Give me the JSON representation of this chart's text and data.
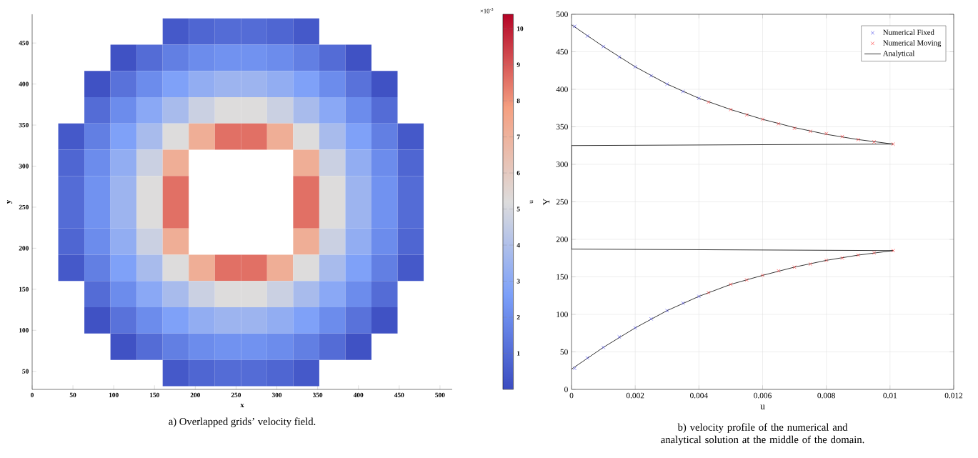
{
  "chart_data": [
    {
      "type": "heatmap",
      "title": "a) Overlapped grids’ velocity field.",
      "xlabel": "x",
      "ylabel": "y",
      "clabel": "u",
      "annotations": [
        "×10$^{-3}$"
      ],
      "x": [
        16,
        48,
        80,
        112,
        144,
        176,
        208,
        240,
        272,
        304,
        336,
        368,
        400,
        432,
        464,
        496
      ],
      "y": [
        464,
        432,
        400,
        368,
        336,
        304,
        272,
        240,
        208,
        176,
        144,
        112,
        80,
        48
      ],
      "cells": [
        [
          null,
          null,
          null,
          null,
          null,
          0.4,
          0.8,
          1.0,
          1.0,
          0.8,
          0.4,
          null,
          null,
          null,
          null,
          null
        ],
        [
          null,
          null,
          null,
          0.2,
          1.0,
          1.6,
          2.0,
          2.2,
          2.2,
          2.0,
          1.6,
          1.0,
          0.2,
          null,
          null,
          null
        ],
        [
          null,
          null,
          0.2,
          1.2,
          2.0,
          2.7,
          3.2,
          3.5,
          3.5,
          3.2,
          2.7,
          2.0,
          1.2,
          0.2,
          null,
          null
        ],
        [
          null,
          null,
          1.0,
          2.0,
          3.0,
          3.8,
          4.7,
          5.2,
          5.2,
          4.7,
          3.8,
          3.0,
          2.0,
          1.0,
          null,
          null
        ],
        [
          null,
          0.4,
          1.6,
          2.7,
          3.8,
          5.2,
          7.2,
          8.6,
          8.6,
          7.2,
          5.2,
          3.8,
          2.7,
          1.6,
          0.4,
          null
        ],
        [
          null,
          0.8,
          2.0,
          3.2,
          4.7,
          7.2,
          null,
          null,
          null,
          null,
          7.2,
          4.7,
          3.2,
          2.0,
          0.8,
          null
        ],
        [
          null,
          1.0,
          2.2,
          3.5,
          5.2,
          8.6,
          null,
          null,
          null,
          null,
          8.6,
          5.2,
          3.5,
          2.2,
          1.0,
          null
        ],
        [
          null,
          1.0,
          2.2,
          3.5,
          5.2,
          8.6,
          null,
          null,
          null,
          null,
          8.6,
          5.2,
          3.5,
          2.2,
          1.0,
          null
        ],
        [
          null,
          0.8,
          2.0,
          3.2,
          4.7,
          7.2,
          null,
          null,
          null,
          null,
          7.2,
          4.7,
          3.2,
          2.0,
          0.8,
          null
        ],
        [
          null,
          0.4,
          1.6,
          2.7,
          3.8,
          5.2,
          7.2,
          8.6,
          8.6,
          7.2,
          5.2,
          3.8,
          2.7,
          1.6,
          0.4,
          null
        ],
        [
          null,
          null,
          1.0,
          2.0,
          3.0,
          3.8,
          4.7,
          5.2,
          5.2,
          4.7,
          3.8,
          3.0,
          2.0,
          1.0,
          null,
          null
        ],
        [
          null,
          null,
          0.2,
          1.2,
          2.0,
          2.7,
          3.2,
          3.5,
          3.5,
          3.2,
          2.7,
          2.0,
          1.2,
          0.2,
          null,
          null
        ],
        [
          null,
          null,
          null,
          0.2,
          1.0,
          1.6,
          2.0,
          2.2,
          2.2,
          2.0,
          1.6,
          1.0,
          0.2,
          null,
          null,
          null
        ],
        [
          null,
          null,
          null,
          null,
          null,
          0.4,
          0.8,
          1.0,
          1.0,
          0.8,
          0.4,
          null,
          null,
          null,
          null,
          null
        ]
      ],
      "clim": [
        0,
        10.4
      ],
      "cticks": [
        1,
        2,
        3,
        4,
        5,
        6,
        7,
        8,
        9,
        10
      ],
      "xlim": [
        0,
        515
      ],
      "ylim": [
        28,
        485
      ],
      "xticks": [
        0,
        50,
        100,
        150,
        200,
        250,
        300,
        350,
        400,
        450,
        500
      ],
      "yticks": [
        50,
        100,
        150,
        200,
        250,
        300,
        350,
        400,
        450
      ]
    },
    {
      "type": "scatter",
      "title": "b) velocity profile of the numerical and analytical solution at the middle of the domain.",
      "xlabel": "u",
      "ylabel": "Y",
      "xlim": [
        0,
        0.012
      ],
      "ylim": [
        0,
        500
      ],
      "xticks": [
        0,
        0.002,
        0.004,
        0.006,
        0.008,
        0.01,
        0.012
      ],
      "yticks": [
        0,
        50,
        100,
        150,
        200,
        250,
        300,
        350,
        400,
        450,
        500
      ],
      "grid": true,
      "legend": "top right",
      "series": [
        {
          "name": "Numerical Fixed",
          "type": "scatter",
          "marker": "cross",
          "color": "#5050e8",
          "x": [
            0.0001,
            0.0005,
            0.001,
            0.0015,
            0.002,
            0.0025,
            0.003,
            0.0035,
            0.004,
            0.0001,
            0.0005,
            0.001,
            0.0015,
            0.002,
            0.0025,
            0.003,
            0.0035,
            0.004
          ],
          "values": [
            484,
            471,
            457,
            443,
            430,
            418,
            407,
            397,
            388,
            28,
            42,
            56,
            70,
            82,
            94,
            105,
            115,
            124
          ]
        },
        {
          "name": "Numerical Moving",
          "type": "scatter",
          "marker": "cross",
          "color": "#ff3a3a",
          "x": [
            0.0043,
            0.005,
            0.0055,
            0.006,
            0.0065,
            0.007,
            0.0075,
            0.008,
            0.0085,
            0.009,
            0.0095,
            0.0101,
            0.0043,
            0.005,
            0.0055,
            0.006,
            0.0065,
            0.007,
            0.0075,
            0.008,
            0.0085,
            0.009,
            0.0095,
            0.0101
          ],
          "values": [
            383,
            373,
            366,
            360,
            354,
            348,
            344,
            341,
            337,
            333,
            330,
            327,
            129,
            140,
            146,
            152,
            158,
            163,
            167,
            172,
            175,
            179,
            182,
            185
          ]
        },
        {
          "name": "Analytical",
          "type": "line",
          "marker": "none",
          "color": "#000000",
          "x": [
            0,
            0.001,
            0.002,
            0.003,
            0.004,
            0.005,
            0.006,
            0.007,
            0.008,
            0.009,
            0.0101,
            0,
            0,
            0.0101,
            0.009,
            0.008,
            0.007,
            0.006,
            0.005,
            0.004,
            0.003,
            0.002,
            0.001,
            0
          ],
          "values": [
            486,
            457,
            430,
            407,
            388,
            373,
            360,
            349,
            340,
            333,
            327,
            325,
            187,
            185,
            179,
            172,
            163,
            152,
            140,
            124,
            105,
            82,
            56,
            27
          ]
        }
      ]
    }
  ]
}
